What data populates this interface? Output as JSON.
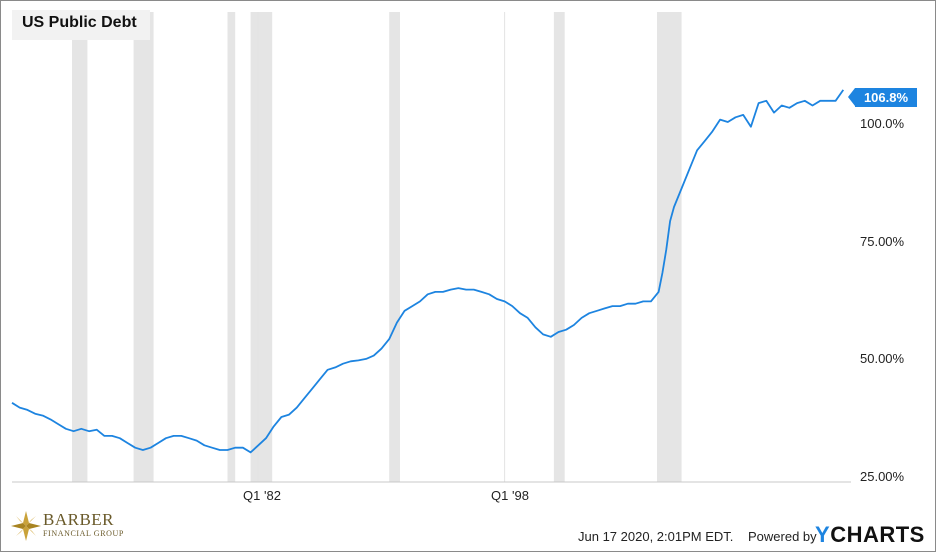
{
  "title": "US Public Debt",
  "last_value_label": "106.8%",
  "footer": {
    "timestamp": "Jun 17 2020, 2:01PM EDT.",
    "powered_by": "Powered by",
    "brand_y": "Y",
    "brand_rest": "CHARTS"
  },
  "logo": {
    "name": "BARBER",
    "subtitle": "FINANCIAL GROUP"
  },
  "colors": {
    "line": "#1d84e0",
    "recession_band": "#e5e5e5",
    "badge": "#1d84e0"
  },
  "chart_data": {
    "type": "line",
    "title": "US Public Debt",
    "xlabel": "",
    "ylabel": "",
    "y_unit": "% of GDP",
    "ylim": [
      25,
      118
    ],
    "xlim": [
      1966.0,
      2020.5
    ],
    "y_ticks": [
      {
        "value": 25,
        "label": "25.00%"
      },
      {
        "value": 50,
        "label": "50.00%"
      },
      {
        "value": 75,
        "label": "75.00%"
      },
      {
        "value": 100,
        "label": "100.0%"
      }
    ],
    "x_ticks": [
      {
        "value": 1982.0,
        "label": "Q1 '82"
      },
      {
        "value": 1998.0,
        "label": "Q1 '98"
      }
    ],
    "grid": "vertical lines at x ticks",
    "legend": "none",
    "recession_periods": [
      [
        1969.9,
        1970.9
      ],
      [
        1973.9,
        1975.2
      ],
      [
        1980.0,
        1980.5
      ],
      [
        1981.5,
        1982.9
      ],
      [
        1990.5,
        1991.2
      ],
      [
        2001.2,
        2001.9
      ],
      [
        2007.9,
        2009.5
      ]
    ],
    "series": [
      {
        "x": [
          1966.0,
          1966.5,
          1967.0,
          1967.5,
          1968.0,
          1968.5,
          1969.0,
          1969.5,
          1970.0,
          1970.5,
          1971.0,
          1971.5,
          1972.0,
          1972.5,
          1973.0,
          1973.5,
          1974.0,
          1974.5,
          1975.0,
          1975.5,
          1976.0,
          1976.5,
          1977.0,
          1977.5,
          1978.0,
          1978.5,
          1979.0,
          1979.5,
          1980.0,
          1980.5,
          1981.0,
          1981.5,
          1982.0,
          1982.5,
          1983.0,
          1983.5,
          1984.0,
          1984.5,
          1985.0,
          1985.5,
          1986.0,
          1986.5,
          1987.0,
          1987.5,
          1988.0,
          1988.5,
          1989.0,
          1989.5,
          1990.0,
          1990.5,
          1991.0,
          1991.5,
          1992.0,
          1992.5,
          1993.0,
          1993.5,
          1994.0,
          1994.5,
          1995.0,
          1995.5,
          1996.0,
          1996.5,
          1997.0,
          1997.5,
          1998.0,
          1998.5,
          1999.0,
          1999.5,
          2000.0,
          2000.5,
          2001.0,
          2001.5,
          2002.0,
          2002.5,
          2003.0,
          2003.5,
          2004.0,
          2004.5,
          2005.0,
          2005.5,
          2006.0,
          2006.5,
          2007.0,
          2007.5,
          2008.0,
          2008.25,
          2008.5,
          2008.75,
          2009.0,
          2009.5,
          2010.0,
          2010.5,
          2011.0,
          2011.5,
          2012.0,
          2012.5,
          2013.0,
          2013.5,
          2014.0,
          2014.5,
          2015.0,
          2015.5,
          2016.0,
          2016.5,
          2017.0,
          2017.5,
          2018.0,
          2018.5,
          2019.0,
          2019.5,
          2020.0
        ],
        "y": [
          40.5,
          39.5,
          39.0,
          38.2,
          37.8,
          37.0,
          36.0,
          35.0,
          34.5,
          35.0,
          34.5,
          34.8,
          33.5,
          33.5,
          33.0,
          32.0,
          31.0,
          30.5,
          31.0,
          32.0,
          33.0,
          33.5,
          33.5,
          33.0,
          32.5,
          31.5,
          31.0,
          30.5,
          30.5,
          31.0,
          31.0,
          30.0,
          31.5,
          33.0,
          35.5,
          37.5,
          38.0,
          39.5,
          41.5,
          43.5,
          45.5,
          47.5,
          48.0,
          48.8,
          49.3,
          49.5,
          49.8,
          50.5,
          52.0,
          54.0,
          57.5,
          60.0,
          61.0,
          62.0,
          63.5,
          64.0,
          64.0,
          64.5,
          64.8,
          64.5,
          64.5,
          64.0,
          63.5,
          62.5,
          62.0,
          61.0,
          59.5,
          58.5,
          56.5,
          55.0,
          54.5,
          55.5,
          56.0,
          57.0,
          58.5,
          59.5,
          60.0,
          60.5,
          61.0,
          61.0,
          61.5,
          61.5,
          62.0,
          62.0,
          64.0,
          68.0,
          73.0,
          79.0,
          82.0,
          86.0,
          90.0,
          94.0,
          96.0,
          98.0,
          100.5,
          100.0,
          101.0,
          101.5,
          99.0,
          104.0,
          104.5,
          102.0,
          103.5,
          103.0,
          104.0,
          104.5,
          103.5,
          104.5,
          104.5,
          104.5,
          106.8
        ]
      }
    ]
  }
}
